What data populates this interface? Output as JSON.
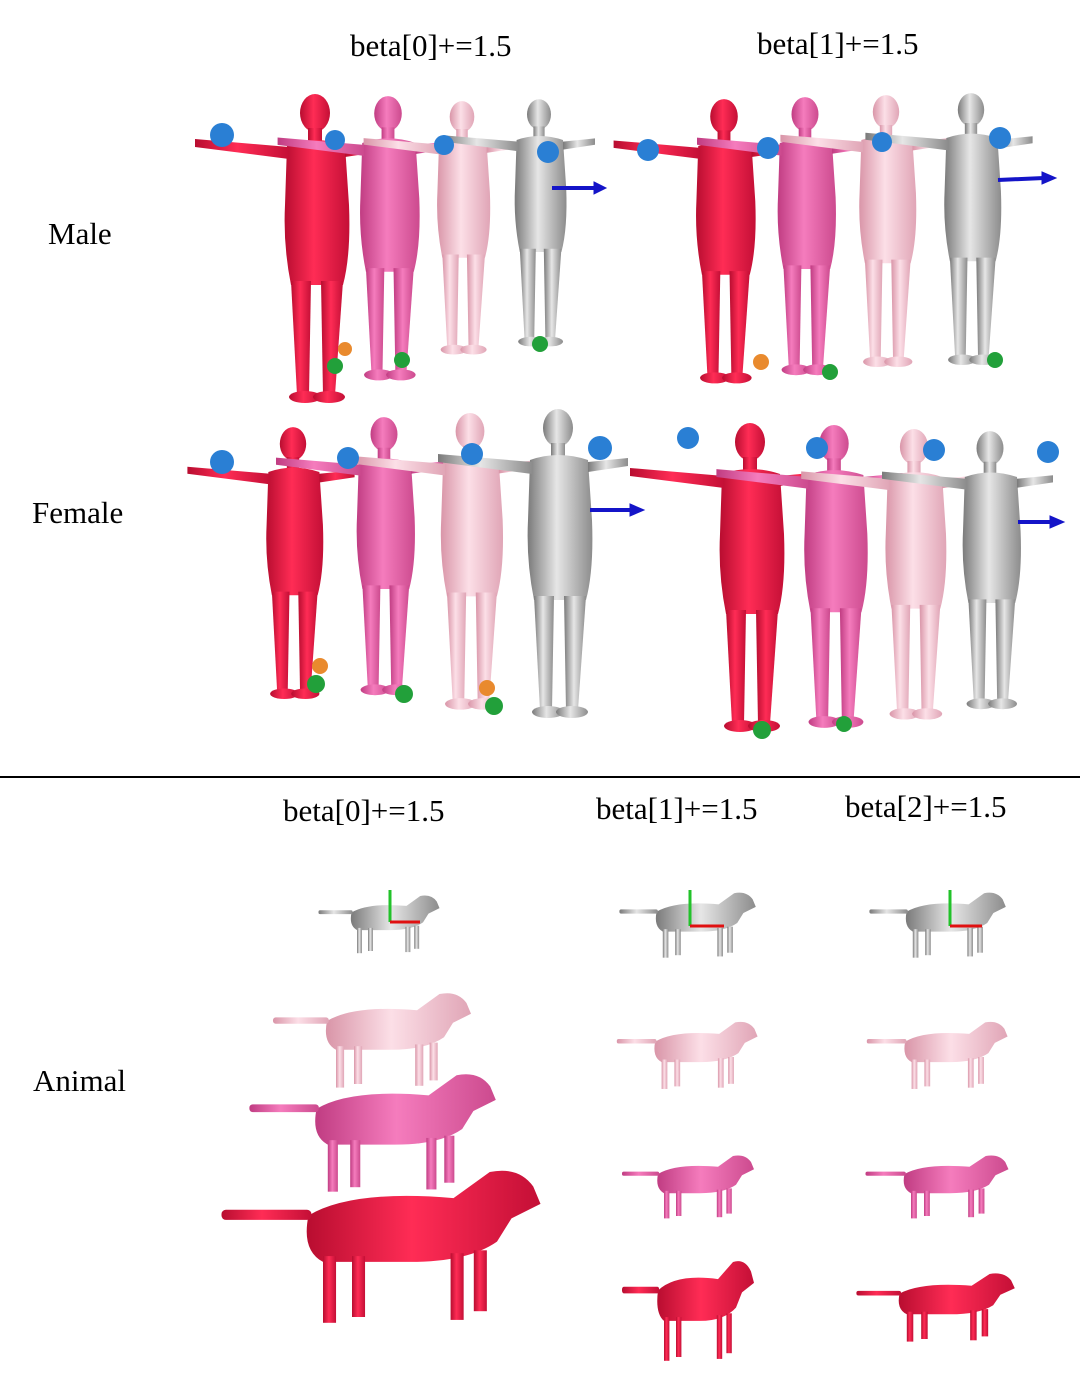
{
  "rows": {
    "male": "Male",
    "female": "Female",
    "animal": "Animal"
  },
  "headers": {
    "human_beta0": "beta[0]+=1.5",
    "human_beta1": "beta[1]+=1.5",
    "animal_beta0": "beta[0]+=1.5",
    "animal_beta1": "beta[1]+=1.5",
    "animal_beta2": "beta[2]+=1.5"
  },
  "colors": {
    "red": "#e8123f",
    "pink": "#e8569e",
    "light_pink": "#f2b9c8",
    "gray": "#a9a9a9",
    "arrow_blue": "#1414c8",
    "joint_blue": "#2a7fd4",
    "joint_green": "#22a03a",
    "joint_orange": "#e98a2e"
  }
}
